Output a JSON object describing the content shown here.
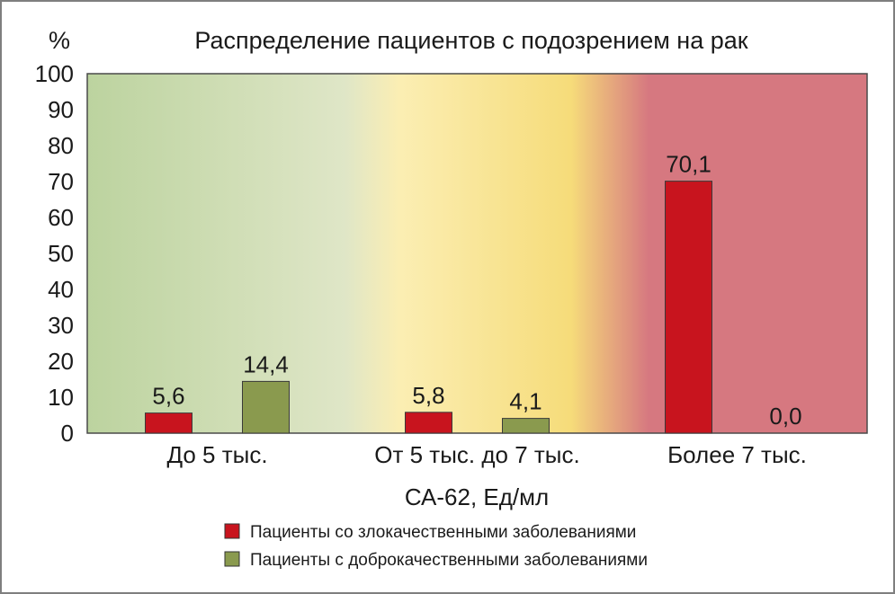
{
  "chart_data": {
    "type": "bar",
    "title": "Распределение пациентов с подозрением на рак",
    "unit_label": "%",
    "xlabel": "СА-62, Ед/мл",
    "ylabel": "",
    "ylim": [
      0,
      100
    ],
    "yticks": [
      "0",
      "10",
      "20",
      "30",
      "40",
      "50",
      "60",
      "70",
      "80",
      "90",
      "100"
    ],
    "categories": [
      "До 5 тыс.",
      "От 5 тыс. до 7 тыс.",
      "Более 7 тыс."
    ],
    "series": [
      {
        "name": "Пациенты со злокачественными заболеваниями",
        "color": "#c8141e",
        "values": [
          5.6,
          5.8,
          70.1
        ],
        "labels": [
          "5,6",
          "5,8",
          "70,1"
        ]
      },
      {
        "name": "Пациенты с доброкачественными заболеваниями",
        "color": "#8a9a4e",
        "values": [
          14.4,
          4.1,
          0.0
        ],
        "labels": [
          "14,4",
          "4,1",
          "0,0"
        ]
      }
    ],
    "background_gradient": [
      "#bcd39f",
      "#dfe6c7",
      "#fbeeb3",
      "#f6dc7a",
      "#d67880",
      "#d67880"
    ],
    "legend_position": "bottom"
  }
}
